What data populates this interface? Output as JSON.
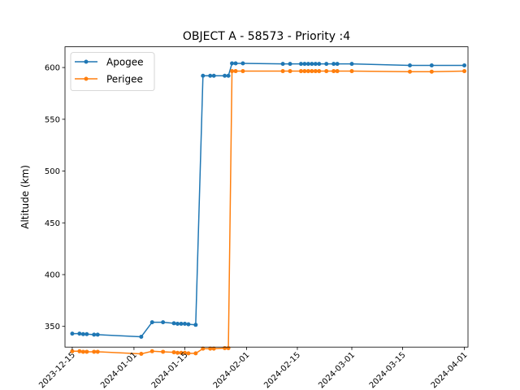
{
  "chart_data": {
    "type": "line",
    "title": "OBJECT A - 58573 - Priority :4",
    "xlabel": "",
    "ylabel": "Altitude (km)",
    "x_type": "date",
    "xlim": [
      "2023-12-13",
      "2024-04-02"
    ],
    "ylim": [
      330,
      620
    ],
    "x_ticks": [
      "2023-12-15",
      "2024-01-01",
      "2024-01-15",
      "2024-02-01",
      "2024-02-15",
      "2024-03-01",
      "2024-03-15",
      "2024-04-01"
    ],
    "y_ticks": [
      350,
      400,
      450,
      500,
      550,
      600
    ],
    "grid": false,
    "legend_position": "top-left",
    "series": [
      {
        "name": "Apogee",
        "color": "#1f77b4",
        "points": [
          [
            "2023-12-15",
            343
          ],
          [
            "2023-12-17",
            343
          ],
          [
            "2023-12-18",
            342.5
          ],
          [
            "2023-12-19",
            342.5
          ],
          [
            "2023-12-21",
            342
          ],
          [
            "2023-12-22",
            342
          ],
          [
            "2024-01-03",
            340
          ],
          [
            "2024-01-06",
            354
          ],
          [
            "2024-01-09",
            354
          ],
          [
            "2024-01-12",
            353
          ],
          [
            "2024-01-13",
            352.5
          ],
          [
            "2024-01-14",
            352.5
          ],
          [
            "2024-01-15",
            352.5
          ],
          [
            "2024-01-16",
            352
          ],
          [
            "2024-01-18",
            351.5
          ],
          [
            "2024-01-20",
            592
          ],
          [
            "2024-01-22",
            592
          ],
          [
            "2024-01-23",
            592
          ],
          [
            "2024-01-26",
            592
          ],
          [
            "2024-01-27",
            592
          ],
          [
            "2024-01-28",
            604
          ],
          [
            "2024-01-29",
            604
          ],
          [
            "2024-01-31",
            604
          ],
          [
            "2024-02-11",
            603.5
          ],
          [
            "2024-02-13",
            603.5
          ],
          [
            "2024-02-16",
            603.5
          ],
          [
            "2024-02-17",
            603.5
          ],
          [
            "2024-02-18",
            603.5
          ],
          [
            "2024-02-19",
            603.5
          ],
          [
            "2024-02-20",
            603.5
          ],
          [
            "2024-02-21",
            603.5
          ],
          [
            "2024-02-23",
            603.5
          ],
          [
            "2024-02-25",
            603.5
          ],
          [
            "2024-02-26",
            603.5
          ],
          [
            "2024-03-01",
            603.5
          ],
          [
            "2024-03-17",
            602
          ],
          [
            "2024-03-23",
            602
          ],
          [
            "2024-04-01",
            602
          ]
        ]
      },
      {
        "name": "Perigee",
        "color": "#ff7f0e",
        "points": [
          [
            "2023-12-15",
            326
          ],
          [
            "2023-12-17",
            326
          ],
          [
            "2023-12-18",
            325.5
          ],
          [
            "2023-12-19",
            325.5
          ],
          [
            "2023-12-21",
            325.5
          ],
          [
            "2023-12-22",
            325.5
          ],
          [
            "2024-01-03",
            323.5
          ],
          [
            "2024-01-06",
            326
          ],
          [
            "2024-01-09",
            325.5
          ],
          [
            "2024-01-12",
            325
          ],
          [
            "2024-01-13",
            324.5
          ],
          [
            "2024-01-14",
            324.5
          ],
          [
            "2024-01-15",
            324.5
          ],
          [
            "2024-01-16",
            324
          ],
          [
            "2024-01-18",
            324
          ],
          [
            "2024-01-20",
            328.5
          ],
          [
            "2024-01-22",
            328.5
          ],
          [
            "2024-01-23",
            328.5
          ],
          [
            "2024-01-26",
            329
          ],
          [
            "2024-01-27",
            329
          ],
          [
            "2024-01-28",
            596.5
          ],
          [
            "2024-01-29",
            596.5
          ],
          [
            "2024-01-31",
            596.5
          ],
          [
            "2024-02-11",
            596.5
          ],
          [
            "2024-02-13",
            596.5
          ],
          [
            "2024-02-16",
            596.5
          ],
          [
            "2024-02-17",
            596.5
          ],
          [
            "2024-02-18",
            596.5
          ],
          [
            "2024-02-19",
            596.5
          ],
          [
            "2024-02-20",
            596.5
          ],
          [
            "2024-02-21",
            596.5
          ],
          [
            "2024-02-23",
            596.5
          ],
          [
            "2024-02-25",
            596.5
          ],
          [
            "2024-02-26",
            596.5
          ],
          [
            "2024-03-01",
            596.5
          ],
          [
            "2024-03-17",
            596
          ],
          [
            "2024-03-23",
            596
          ],
          [
            "2024-04-01",
            596.5
          ]
        ]
      }
    ]
  }
}
